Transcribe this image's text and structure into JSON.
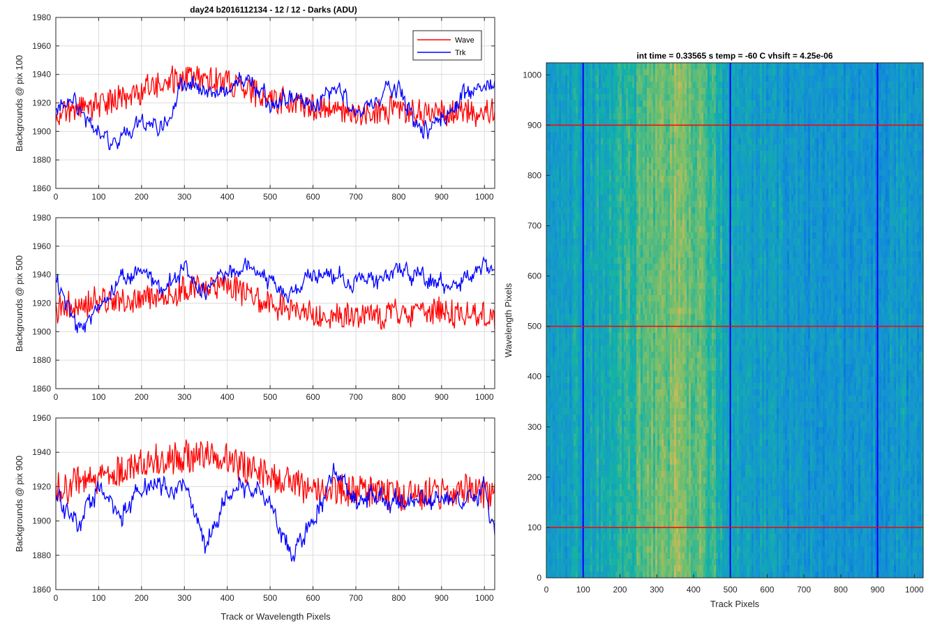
{
  "colors": {
    "wave": "#ff0000",
    "trk": "#0000ff",
    "grid": "#dcdcdc",
    "axis": "#262626"
  },
  "chart_data": [
    {
      "type": "line",
      "title": "day24 b2016112134 - 12 / 12 - Darks (ADU)",
      "xlabel": "",
      "ylabel": "Backgrounds @ pix 100",
      "xlim": [
        0,
        1024
      ],
      "ylim": [
        1860,
        1980
      ],
      "xticks": [
        0,
        100,
        200,
        300,
        400,
        500,
        600,
        700,
        800,
        900,
        1000
      ],
      "yticks": [
        1860,
        1880,
        1900,
        1920,
        1940,
        1960,
        1980
      ],
      "grid": true,
      "legend": {
        "position": "top-right",
        "entries": [
          "Wave",
          "Trk"
        ]
      },
      "series": [
        {
          "name": "Wave",
          "color": "#ff0000",
          "x": [
            0,
            100,
            200,
            300,
            400,
            500,
            600,
            700,
            800,
            900,
            1000,
            1024
          ],
          "values": [
            1912,
            1918,
            1928,
            1938,
            1934,
            1922,
            1916,
            1912,
            1914,
            1912,
            1914,
            1914
          ]
        },
        {
          "name": "Trk",
          "color": "#0000ff",
          "x": [
            0,
            50,
            100,
            150,
            200,
            250,
            300,
            350,
            400,
            450,
            500,
            550,
            600,
            650,
            700,
            750,
            800,
            850,
            900,
            950,
            1000,
            1024
          ],
          "values": [
            1920,
            1918,
            1900,
            1892,
            1910,
            1900,
            1935,
            1930,
            1925,
            1938,
            1918,
            1925,
            1918,
            1930,
            1915,
            1920,
            1932,
            1898,
            1908,
            1925,
            1930,
            1932
          ]
        }
      ]
    },
    {
      "type": "line",
      "title": "",
      "xlabel": "",
      "ylabel": "Backgrounds @ pix 500",
      "xlim": [
        0,
        1024
      ],
      "ylim": [
        1860,
        1980
      ],
      "xticks": [
        0,
        100,
        200,
        300,
        400,
        500,
        600,
        700,
        800,
        900,
        1000
      ],
      "yticks": [
        1860,
        1880,
        1900,
        1920,
        1940,
        1960,
        1980
      ],
      "grid": true,
      "series": [
        {
          "name": "Wave",
          "color": "#ff0000",
          "x": [
            0,
            100,
            200,
            300,
            400,
            500,
            600,
            700,
            800,
            900,
            1000,
            1024
          ],
          "values": [
            1915,
            1922,
            1922,
            1930,
            1932,
            1920,
            1912,
            1910,
            1912,
            1914,
            1912,
            1910
          ]
        },
        {
          "name": "Trk",
          "color": "#0000ff",
          "x": [
            0,
            50,
            100,
            150,
            200,
            250,
            300,
            350,
            400,
            450,
            500,
            550,
            600,
            650,
            700,
            750,
            800,
            850,
            900,
            950,
            1000,
            1024
          ],
          "values": [
            1935,
            1905,
            1915,
            1938,
            1942,
            1930,
            1945,
            1928,
            1942,
            1945,
            1935,
            1925,
            1942,
            1940,
            1935,
            1935,
            1945,
            1940,
            1932,
            1935,
            1945,
            1945
          ]
        }
      ]
    },
    {
      "type": "line",
      "title": "",
      "xlabel": "Track or Wavelength Pixels",
      "ylabel": "Backgrounds @ pix 900",
      "xlim": [
        0,
        1024
      ],
      "ylim": [
        1860,
        1960
      ],
      "xticks": [
        0,
        100,
        200,
        300,
        400,
        500,
        600,
        700,
        800,
        900,
        1000
      ],
      "yticks": [
        1860,
        1880,
        1900,
        1920,
        1940,
        1960
      ],
      "grid": true,
      "series": [
        {
          "name": "Wave",
          "color": "#ff0000",
          "x": [
            0,
            100,
            200,
            300,
            400,
            500,
            600,
            700,
            800,
            900,
            1000,
            1024
          ],
          "values": [
            1918,
            1925,
            1934,
            1938,
            1936,
            1925,
            1920,
            1916,
            1916,
            1916,
            1918,
            1916
          ]
        },
        {
          "name": "Trk",
          "color": "#0000ff",
          "x": [
            0,
            50,
            100,
            150,
            200,
            250,
            300,
            350,
            400,
            450,
            500,
            550,
            600,
            650,
            700,
            750,
            800,
            850,
            900,
            950,
            1000,
            1024
          ],
          "values": [
            1915,
            1895,
            1918,
            1902,
            1920,
            1918,
            1922,
            1885,
            1915,
            1920,
            1910,
            1880,
            1900,
            1928,
            1910,
            1912,
            1910,
            1912,
            1910,
            1912,
            1918,
            1890
          ]
        }
      ]
    },
    {
      "type": "heatmap",
      "title": "int time = 0.33565 s    temp = -60 C    vhsift = 4.25e-06",
      "xlabel": "Track Pixels",
      "ylabel": "Wavelength Pixels",
      "xlim": [
        0,
        1024
      ],
      "ylim": [
        0,
        1024
      ],
      "xticks": [
        0,
        100,
        200,
        300,
        400,
        500,
        600,
        700,
        800,
        900,
        1000
      ],
      "yticks": [
        0,
        100,
        200,
        300,
        400,
        500,
        600,
        700,
        800,
        900,
        1000
      ],
      "colormap": "parula",
      "column_profile": {
        "x": [
          0,
          100,
          200,
          250,
          300,
          350,
          400,
          450,
          500,
          550,
          600,
          700,
          800,
          900,
          1000,
          1024
        ],
        "level": [
          0.46,
          0.48,
          0.55,
          0.62,
          0.66,
          0.7,
          0.68,
          0.58,
          0.46,
          0.45,
          0.44,
          0.4,
          0.4,
          0.4,
          0.42,
          0.43
        ]
      },
      "marker_columns": [
        100,
        500,
        900
      ],
      "marker_rows": [
        100,
        500,
        900
      ],
      "column_line_color": "#0000ff",
      "row_line_color": "#ff0000"
    }
  ]
}
